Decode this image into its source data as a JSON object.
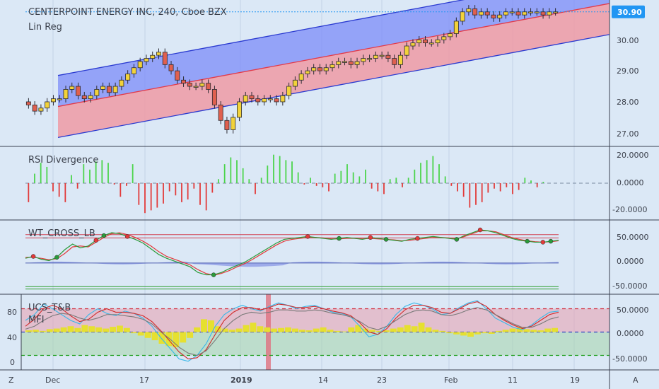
{
  "header": {
    "title": "CENTERPOINT ENERGY INC, 240, Cboe BZX",
    "indicator": "Lin Reg"
  },
  "price_badge": {
    "value": "30.90",
    "color": "#2196f3"
  },
  "x_axis": {
    "ticks": [
      "Dec",
      "17",
      "2019",
      "14",
      "23",
      "Feb",
      "11",
      "19"
    ],
    "left_label": "Z",
    "right_label": "A"
  },
  "panels": {
    "price": {
      "y_ticks": [
        "30.00",
        "29.00",
        "28.00",
        "27.00"
      ],
      "ylim": [
        26.7,
        31.1
      ]
    },
    "rsi": {
      "title": "RSI Divergence",
      "y_ticks": [
        "20.0000",
        "0.0000",
        "-20.0000"
      ]
    },
    "wt": {
      "title": "WT_CROSS_LB",
      "y_ticks": [
        "50.0000",
        "0.0000",
        "-50.0000"
      ]
    },
    "ucs": {
      "title": "UCS_T&B",
      "subtitle": "MFI",
      "y_ticks_right": [
        "50.0000",
        "0.0000",
        "-50.0000"
      ],
      "y_ticks_left": [
        "80",
        "40",
        "0"
      ]
    }
  },
  "colors": {
    "bull": "#f2d23a",
    "bear": "#e0604f",
    "reg_upper_fill": "#7c8cf8",
    "reg_lower_fill": "#ee9aa4",
    "reg_mid": "#e23a4a",
    "reg_band": "#2a3ad0",
    "rsi_pos": "#4cd44c",
    "rsi_neg": "#e23a3a"
  },
  "chart_data": [
    {
      "type": "candlestick",
      "title": "CENTERPOINT ENERGY INC, 240, Cboe BZX",
      "last": 30.9,
      "series": [
        {
          "name": "Lin Reg",
          "close": [
            27.9,
            27.7,
            27.8,
            28.0,
            28.1,
            28.1,
            28.4,
            28.5,
            28.2,
            28.1,
            28.2,
            28.4,
            28.5,
            28.3,
            28.5,
            28.7,
            28.9,
            29.1,
            29.3,
            29.4,
            29.5,
            29.6,
            29.2,
            29.0,
            28.7,
            28.6,
            28.5,
            28.5,
            28.6,
            28.4,
            27.9,
            27.4,
            27.1,
            27.5,
            28.0,
            28.2,
            28.1,
            28.0,
            28.1,
            28.1,
            28.0,
            28.2,
            28.5,
            28.7,
            28.9,
            29.0,
            29.1,
            29.0,
            29.1,
            29.2,
            29.3,
            29.3,
            29.2,
            29.3,
            29.4,
            29.4,
            29.5,
            29.5,
            29.4,
            29.2,
            29.5,
            29.8,
            29.9,
            30.0,
            29.9,
            29.9,
            30.0,
            30.1,
            30.2,
            30.6,
            30.9,
            31.0,
            30.8,
            30.9,
            30.8,
            30.7,
            30.8,
            30.9,
            30.9,
            30.8,
            30.9,
            30.9,
            30.9,
            30.8,
            30.9,
            30.9
          ]
        }
      ],
      "regression": {
        "mid_start": 27.85,
        "mid_end": 31.0,
        "band": 1.0
      }
    },
    {
      "type": "bar",
      "title": "RSI Divergence",
      "ylim": [
        -25,
        25
      ],
      "values": [
        -14,
        7,
        15,
        12,
        -6,
        -10,
        -14,
        6,
        -4,
        14,
        10,
        16,
        17,
        15,
        -1,
        -10,
        -2,
        14,
        -16,
        -22,
        -20,
        -18,
        -15,
        -6,
        -9,
        -14,
        -12,
        -4,
        -16,
        -20,
        -7,
        3,
        14,
        19,
        17,
        11,
        3,
        -8,
        4,
        13,
        21,
        20,
        17,
        16,
        8,
        -1,
        4,
        -2,
        -3,
        -6,
        7,
        9,
        14,
        8,
        5,
        10,
        -4,
        -6,
        -8,
        3,
        4,
        -3,
        4,
        10,
        15,
        17,
        20,
        14,
        5,
        -2,
        -6,
        -10,
        -18,
        -16,
        -14,
        -7,
        -4,
        -6,
        -3,
        -8,
        -5,
        4,
        2,
        -3,
        1,
        0,
        0
      ]
    },
    {
      "type": "line",
      "title": "WT_CROSS_LB",
      "ylim": [
        -60,
        85
      ],
      "series": [
        {
          "values": [
            10,
            14,
            8,
            5,
            12,
            28,
            40,
            32,
            36,
            48,
            58,
            64,
            62,
            56,
            50,
            42,
            30,
            18,
            10,
            4,
            -2,
            -8,
            -20,
            -25,
            -25,
            -20,
            -12,
            -5,
            2,
            12,
            22,
            32,
            42,
            50,
            52,
            54,
            56,
            54,
            52,
            50,
            52,
            54,
            52,
            50,
            54,
            52,
            50,
            48,
            46,
            50,
            52,
            54,
            56,
            54,
            52,
            50,
            58,
            64,
            70,
            68,
            64,
            58,
            52,
            48,
            46,
            44,
            44,
            46,
            48
          ]
        },
        {
          "values": [
            12,
            12,
            10,
            7,
            9,
            20,
            34,
            36,
            34,
            44,
            54,
            62,
            64,
            60,
            54,
            46,
            36,
            24,
            14,
            8,
            2,
            -4,
            -14,
            -22,
            -26,
            -22,
            -16,
            -8,
            -1,
            8,
            18,
            28,
            38,
            46,
            50,
            52,
            54,
            54,
            53,
            51,
            51,
            52,
            52,
            51,
            52,
            51,
            50,
            49,
            47,
            48,
            50,
            52,
            54,
            54,
            53,
            51,
            56,
            62,
            68,
            68,
            66,
            60,
            54,
            50,
            47,
            45,
            44,
            45,
            47
          ]
        }
      ],
      "refs": [
        60,
        53,
        -50,
        -55
      ]
    },
    {
      "type": "area",
      "title": "UCS_T&B",
      "subtitle": "MFI",
      "ylim": [
        -60,
        60
      ],
      "values": [
        3,
        4,
        2,
        5,
        6,
        8,
        10,
        7,
        12,
        10,
        8,
        6,
        9,
        11,
        7,
        -2,
        -6,
        -10,
        -14,
        -20,
        -24,
        -26,
        -18,
        -10,
        8,
        22,
        20,
        10,
        6,
        4,
        6,
        12,
        16,
        10,
        8,
        6,
        7,
        8,
        6,
        4,
        3,
        6,
        8,
        4,
        2,
        1,
        8,
        12,
        6,
        4,
        2,
        3,
        6,
        8,
        12,
        10,
        16,
        8,
        4,
        2,
        -2,
        -4,
        -6,
        -8,
        -4,
        -2,
        -3,
        2,
        4,
        6,
        8,
        5,
        4,
        3,
        6,
        7
      ],
      "refs": [
        40,
        0,
        -40
      ],
      "series": [
        {
          "values": [
            20,
            30,
            48,
            40,
            30,
            20,
            14,
            30,
            40,
            32,
            28,
            36,
            32,
            24,
            10,
            -10,
            -28,
            -46,
            -50,
            -40,
            -20,
            10,
            30,
            40,
            46,
            40,
            36,
            44,
            50,
            46,
            40,
            44,
            46,
            40,
            34,
            32,
            26,
            10,
            -8,
            -4,
            10,
            30,
            44,
            50,
            46,
            40,
            30,
            32,
            42,
            50,
            54,
            40,
            24,
            16,
            8,
            4,
            12,
            24,
            34,
            36
          ]
        },
        {
          "values": [
            10,
            22,
            40,
            46,
            40,
            28,
            18,
            22,
            34,
            40,
            34,
            34,
            32,
            28,
            18,
            2,
            -16,
            -34,
            -46,
            -44,
            -30,
            -4,
            20,
            34,
            42,
            42,
            38,
            42,
            48,
            46,
            42,
            42,
            44,
            40,
            36,
            33,
            28,
            16,
            0,
            -4,
            6,
            24,
            38,
            46,
            46,
            42,
            34,
            32,
            40,
            48,
            52,
            44,
            30,
            20,
            12,
            6,
            10,
            20,
            30,
            34
          ]
        },
        {
          "values": [
            5,
            10,
            20,
            28,
            32,
            30,
            24,
            20,
            24,
            30,
            30,
            28,
            26,
            22,
            14,
            0,
            -12,
            -26,
            -36,
            -40,
            -32,
            -14,
            6,
            20,
            30,
            34,
            32,
            34,
            38,
            38,
            36,
            36,
            38,
            36,
            32,
            30,
            26,
            18,
            8,
            4,
            10,
            20,
            30,
            36,
            38,
            36,
            30,
            28,
            32,
            38,
            42,
            38,
            30,
            22,
            14,
            8,
            8,
            14,
            22,
            26
          ]
        }
      ],
      "left_scale": [
        0,
        80
      ]
    }
  ]
}
